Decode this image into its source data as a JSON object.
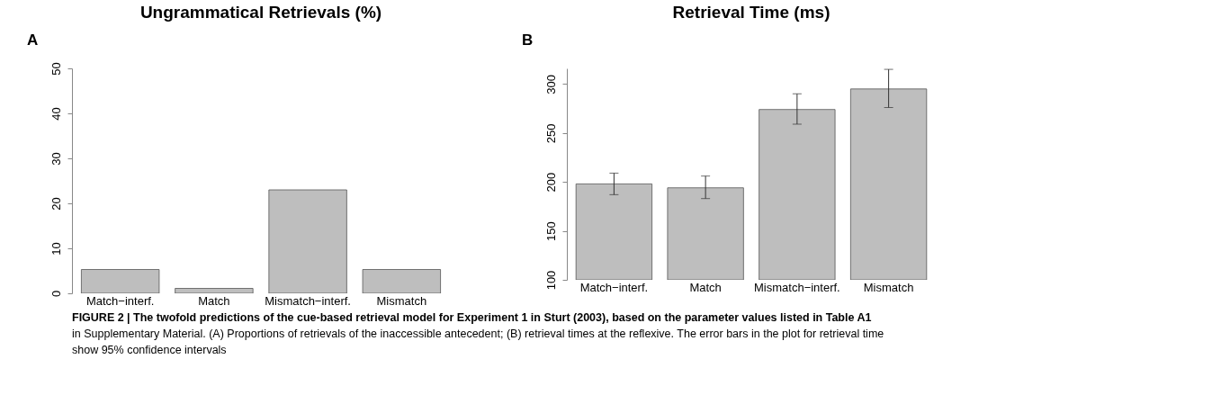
{
  "chart_data": [
    {
      "type": "bar",
      "title": "Ungrammatical Retrievals (%)",
      "annotations": [
        "A"
      ],
      "categories": [
        "Match−interf.",
        "Match",
        "Mismatch−interf.",
        "Mismatch"
      ],
      "series": [
        {
          "color": "#bebebe",
          "values": [
            5.3,
            1.1,
            23,
            5.3
          ]
        }
      ],
      "ylim": [
        0,
        50
      ],
      "yticks": [
        0,
        10,
        20,
        30,
        40,
        50
      ],
      "grid": false,
      "legend": false
    },
    {
      "type": "bar",
      "title": "Retrieval Time (ms)",
      "annotations": [
        "B",
        "FIGURE 2 | The twofold predictions of the cue-based retrieval model for Experiment 1 in Sturt (2003), based on the parameter values listed in Table A1",
        "in Supplementary Material. (A) Proportions of retrievals of the inaccessible antecedent; (B) retrieval times at the reflexive. The error bars in the plot for retrieval time",
        "show 95% confidence intervals"
      ],
      "categories": [
        "Match−interf.",
        "Match",
        "Mismatch−interf.",
        "Mismatch"
      ],
      "series": [
        {
          "color": "#bebebe",
          "values": [
            198,
            194,
            274,
            295
          ],
          "errors": [
            [
              187,
              209
            ],
            [
              183,
              206
            ],
            [
              259,
              290
            ],
            [
              276,
              315
            ]
          ]
        }
      ],
      "ylim": [
        100,
        316
      ],
      "yticks": [
        100,
        150,
        200,
        250,
        300
      ],
      "grid": false,
      "legend": false
    }
  ]
}
